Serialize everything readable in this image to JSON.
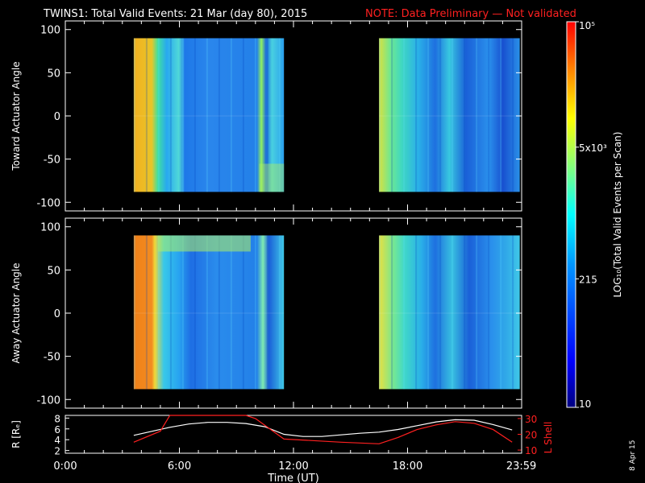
{
  "header": {
    "title": "TWINS1: Total Valid Events: 21 Mar (day  80), 2015",
    "note": "NOTE: Data Preliminary — Not validated"
  },
  "side_stamp": "8 Apr 15",
  "colors": {
    "note": "#ff2020",
    "axis": "#ffffff",
    "lshell": "#ff2020",
    "radius": "#ffffff"
  },
  "chart_data": [
    {
      "type": "heatmap",
      "panel": "top",
      "ylabel": "Toward Actuator Angle",
      "ylim": [
        -110,
        110
      ],
      "yticks": [
        100,
        50,
        0,
        -50,
        -100
      ],
      "xlim": [
        0,
        24
      ],
      "data_extent_y": [
        -88,
        90
      ],
      "coverage_hours": [
        [
          3.6,
          11.5
        ],
        [
          16.5,
          23.9
        ]
      ],
      "grid": false
    },
    {
      "type": "heatmap",
      "panel": "middle",
      "ylabel": "Away Actuator Angle",
      "ylim": [
        -110,
        110
      ],
      "yticks": [
        100,
        50,
        0,
        -50,
        -100
      ],
      "xlim": [
        0,
        24
      ],
      "data_extent_y": [
        -88,
        90
      ],
      "coverage_hours": [
        [
          3.6,
          11.5
        ],
        [
          16.5,
          23.9
        ]
      ],
      "grid": false
    },
    {
      "type": "line",
      "panel": "bottom",
      "ylabel_left": "R [Rₑ]",
      "ylabel_right": "L Shell",
      "yticks_left": [
        8,
        6,
        4,
        2
      ],
      "ylim_left": [
        1.5,
        8.5
      ],
      "yticks_right": [
        30,
        20,
        10
      ],
      "ylim_right": [
        8,
        32
      ],
      "xlabel": "Time (UT)",
      "xlim": [
        0,
        24
      ],
      "xticks": [
        {
          "value": 0,
          "label": "0:00"
        },
        {
          "value": 6,
          "label": "6:00"
        },
        {
          "value": 12,
          "label": "12:00"
        },
        {
          "value": 18,
          "label": "18:00"
        },
        {
          "value": 23.983,
          "label": "23:59"
        }
      ],
      "series": [
        {
          "axis": "left",
          "x": [
            3.6,
            4.5,
            5.5,
            6.5,
            7.5,
            8.5,
            9.5,
            10.5,
            11.5,
            12.5,
            13.5,
            14.5,
            15.5,
            16.5,
            17.5,
            18.5,
            19.5,
            20.5,
            21.5,
            22.5,
            23.5
          ],
          "values": [
            4.8,
            5.5,
            6.3,
            6.9,
            7.2,
            7.2,
            7.0,
            6.4,
            5.0,
            4.6,
            4.6,
            4.9,
            5.2,
            5.4,
            5.9,
            6.6,
            7.3,
            7.7,
            7.6,
            6.8,
            5.8
          ]
        },
        {
          "axis": "right",
          "x": [
            3.6,
            5.0,
            5.5,
            9.5,
            10.0,
            11.5,
            13.0,
            14.5,
            16.5,
            17.5,
            18.5,
            19.5,
            20.5,
            21.5,
            22.5,
            23.5
          ],
          "values": [
            15,
            22,
            32,
            32,
            30,
            17,
            16,
            15,
            14,
            18,
            23,
            26,
            28,
            27,
            23,
            15
          ]
        }
      ]
    },
    {
      "type": "colorbar",
      "label": "LOG₁₀(Total Valid Events per Scan)",
      "scale": "log",
      "ticks": [
        {
          "value": 100000,
          "label": "10⁵"
        },
        {
          "value": 5000,
          "label": "5x10³"
        },
        {
          "value": 215,
          "label": "215"
        },
        {
          "value": 10,
          "label": "10"
        }
      ],
      "range": [
        10,
        100000
      ]
    }
  ]
}
